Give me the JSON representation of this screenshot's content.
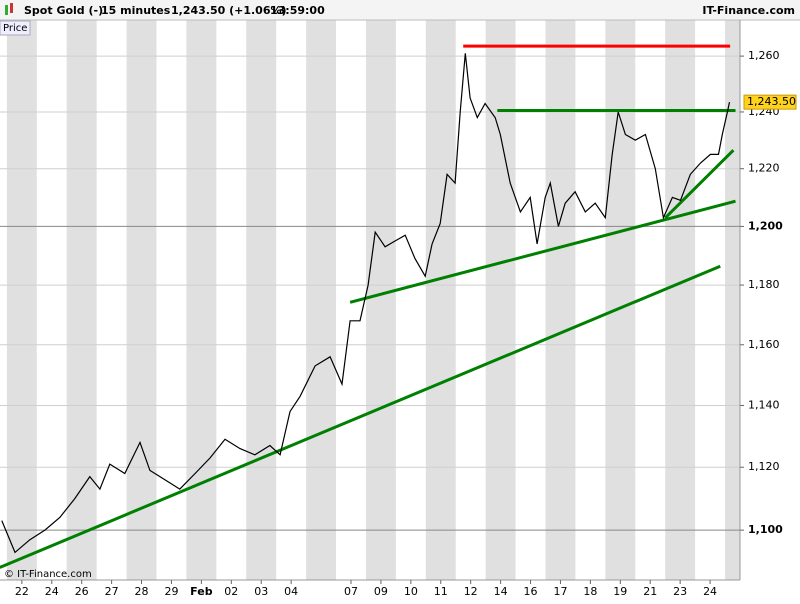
{
  "header": {
    "instrument": "Spot Gold (-)",
    "interval": "15 minutes",
    "quote": "1,243.50 (+1.06%)",
    "time": "13:59:00",
    "brand": "IT-Finance.com"
  },
  "panel_label": "Price",
  "watermark": "© IT-Finance.com",
  "chart_data": {
    "type": "line",
    "log": true,
    "grid": true,
    "color": "#000000",
    "x": [
      -0.67,
      -0.23,
      0.27,
      0.77,
      1.27,
      1.77,
      2.27,
      2.61,
      2.94,
      3.44,
      3.95,
      4.28,
      4.78,
      5.28,
      5.79,
      6.29,
      6.79,
      7.29,
      7.79,
      8.29,
      8.63,
      8.96,
      9.3,
      9.8,
      10.3,
      10.7,
      10.97,
      11.3,
      11.57,
      11.81,
      12.14,
      12.47,
      12.81,
      13.14,
      13.48,
      13.71,
      13.98,
      14.21,
      14.48,
      14.65,
      14.82,
      14.98,
      15.22,
      15.48,
      15.82,
      15.99,
      16.32,
      16.66,
      16.99,
      17.22,
      17.49,
      17.66,
      17.93,
      18.16,
      18.49,
      18.83,
      19.16,
      19.5,
      19.73,
      19.93,
      20.17,
      20.5,
      20.84,
      21.17,
      21.44,
      21.74,
      22.01,
      22.34,
      22.68,
      23.01,
      23.28,
      23.41,
      23.58,
      23.65
    ],
    "values": [
      1103,
      1093,
      1097,
      1100,
      1104,
      1110,
      1117,
      1113,
      1121,
      1118,
      1128,
      1119,
      1116,
      1113,
      1118,
      1123,
      1129,
      1126,
      1124,
      1127,
      1124,
      1138,
      1143,
      1153,
      1156,
      1147,
      1168,
      1168,
      1180,
      1198,
      1193,
      1195,
      1197,
      1189,
      1183,
      1194,
      1201,
      1218,
      1215,
      1240,
      1261,
      1245,
      1238,
      1243,
      1238,
      1232,
      1215,
      1205,
      1210,
      1194,
      1210,
      1215,
      1200,
      1208,
      1212,
      1205,
      1208,
      1203,
      1225,
      1240,
      1232,
      1230,
      1232,
      1220,
      1203,
      1210,
      1209,
      1218,
      1222,
      1225,
      1225,
      1232,
      1240,
      1243.5
    ],
    "last_value_label": "1,243.50",
    "trendlines": [
      {
        "color": "#ff0000",
        "x": [
          14.75,
          23.67
        ],
        "values": [
          1263.6,
          1263.6
        ]
      },
      {
        "color": "#008000",
        "x": [
          15.89,
          23.85
        ],
        "values": [
          1240.5,
          1240.5
        ]
      },
      {
        "color": "#008000",
        "x": [
          10.97,
          23.85
        ],
        "values": [
          1174.2,
          1208.7
        ]
      },
      {
        "color": "#008000",
        "x": [
          -0.74,
          23.34
        ],
        "values": [
          1088.3,
          1186.4
        ]
      },
      {
        "color": "#008000",
        "x": [
          21.5,
          23.78
        ],
        "values": [
          1202.9,
          1226.5
        ]
      }
    ],
    "xlim": [
      -0.73,
      24.0
    ],
    "xticks": [
      {
        "value": 0,
        "label": "22"
      },
      {
        "value": 1,
        "label": "24"
      },
      {
        "value": 2,
        "label": "26"
      },
      {
        "value": 3,
        "label": "27"
      },
      {
        "value": 4,
        "label": "28"
      },
      {
        "value": 5,
        "label": "29"
      },
      {
        "value": 6,
        "label": "Feb"
      },
      {
        "value": 7,
        "label": "02"
      },
      {
        "value": 8,
        "label": "03"
      },
      {
        "value": 9,
        "label": "04"
      },
      {
        "value": 11,
        "label": "07"
      },
      {
        "value": 12,
        "label": "09"
      },
      {
        "value": 13,
        "label": "10"
      },
      {
        "value": 14,
        "label": "11"
      },
      {
        "value": 15,
        "label": "12"
      },
      {
        "value": 16,
        "label": "14"
      },
      {
        "value": 17,
        "label": "16"
      },
      {
        "value": 18,
        "label": "17"
      },
      {
        "value": 19,
        "label": "18"
      },
      {
        "value": 20,
        "label": "19"
      },
      {
        "value": 21,
        "label": "21"
      },
      {
        "value": 22,
        "label": "23"
      },
      {
        "value": 23,
        "label": "24"
      }
    ],
    "ylim": [
      1084.4,
      1273.1
    ],
    "yticks": [
      {
        "value": 1100,
        "label": "1,100"
      },
      {
        "value": 1120,
        "label": "1,120"
      },
      {
        "value": 1140,
        "label": "1,140"
      },
      {
        "value": 1160,
        "label": "1,160"
      },
      {
        "value": 1180,
        "label": "1,180"
      },
      {
        "value": 1200,
        "label": "1,200"
      },
      {
        "value": 1220,
        "label": "1,220"
      },
      {
        "value": 1240,
        "label": "1,240"
      },
      {
        "value": 1260,
        "label": "1,260"
      }
    ]
  }
}
